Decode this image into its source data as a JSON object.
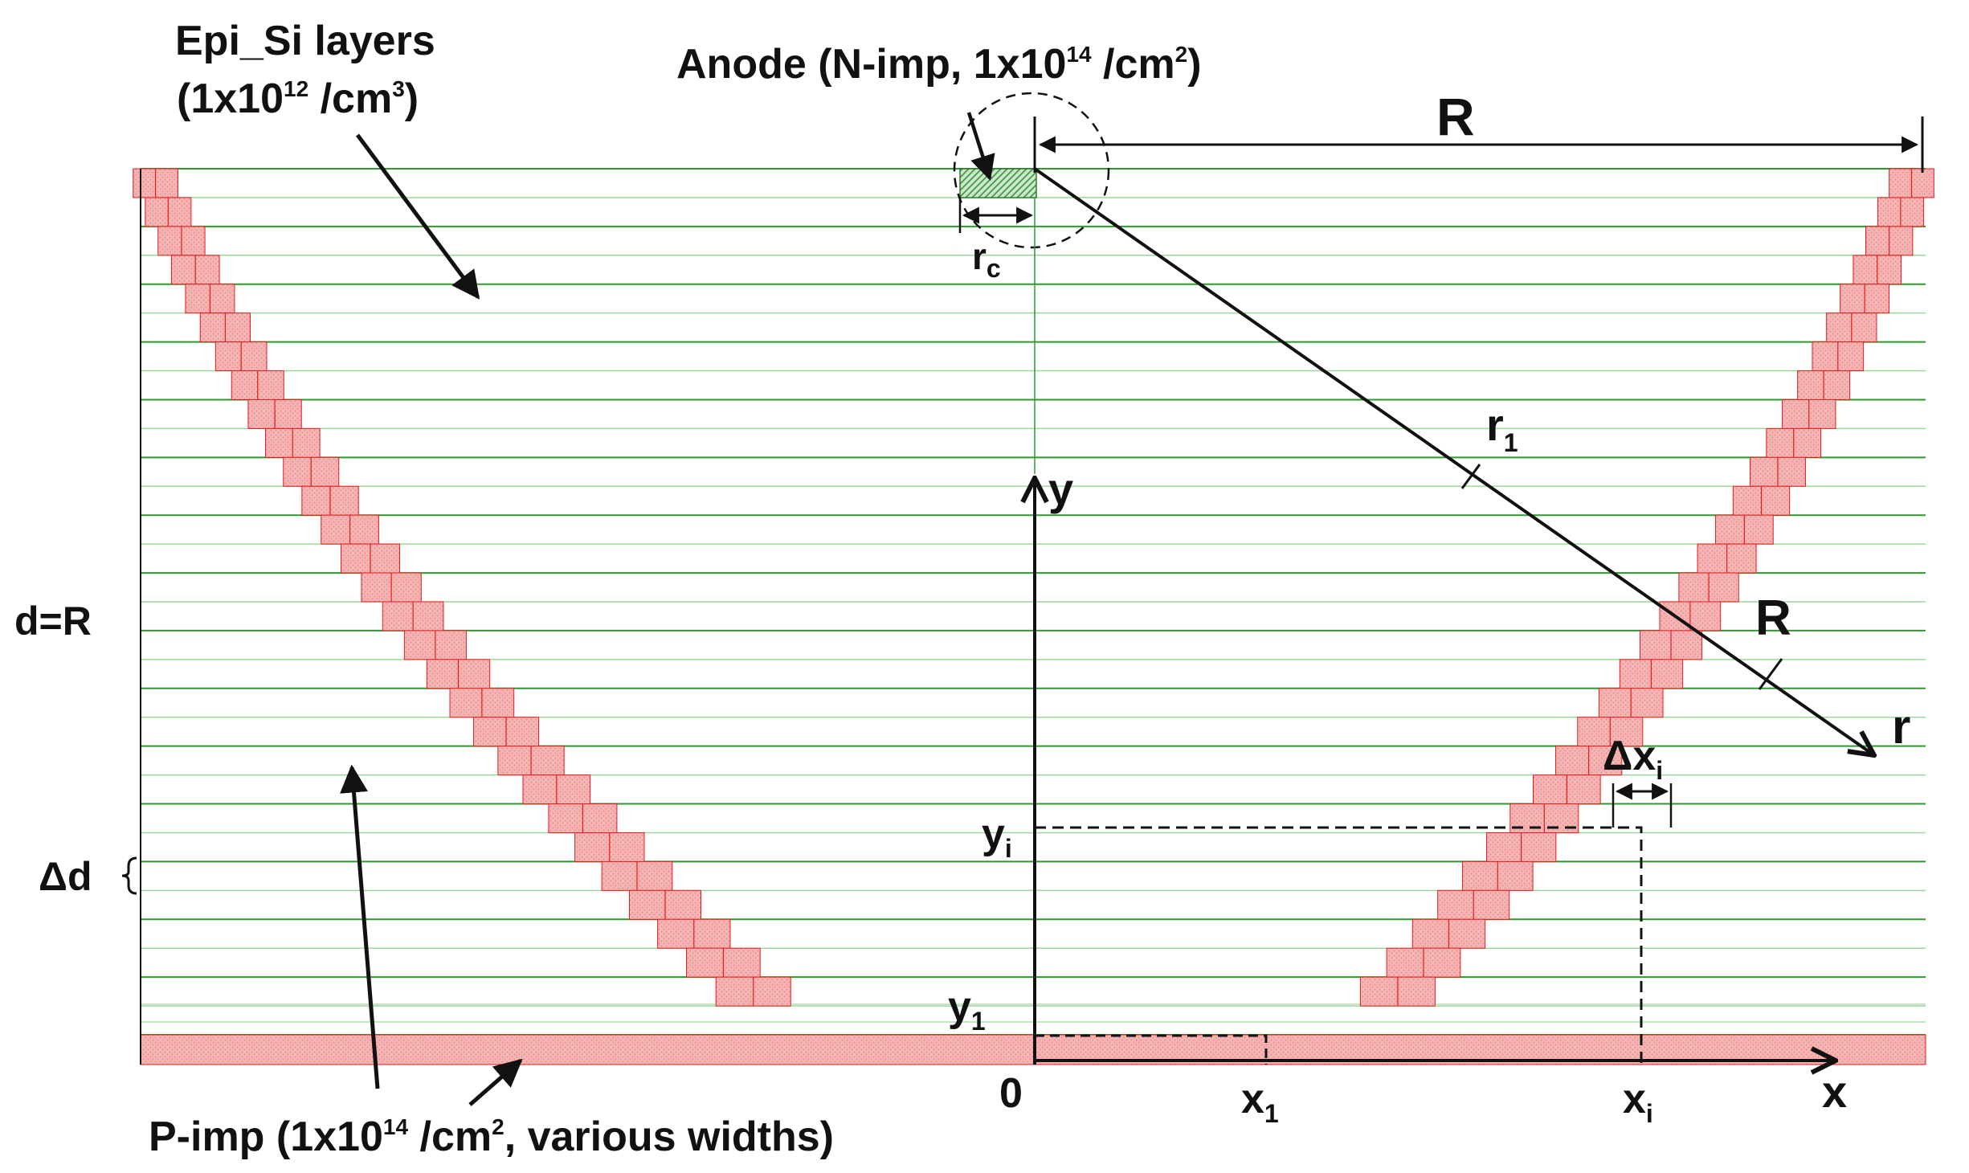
{
  "colors": {
    "layer_line": "#2e9a2e",
    "layer_line_light": "#9ed79e",
    "p_imp_fill": "#f5b5b5",
    "p_imp_dots": "#e88b8b",
    "p_imp_edge": "#e41c1c",
    "anode_fill": "#5aa85a",
    "axis": "#111111"
  },
  "labels": {
    "epi_line1": "Epi_Si layers",
    "epi_line2_a": "(1x10",
    "epi_line2_sup": "12",
    "epi_line2_b": " /cm",
    "epi_line2_sup2": "3",
    "epi_line2_c": ")",
    "anode_a": "Anode (N-imp, 1x10",
    "anode_sup": "14",
    "anode_b": " /cm",
    "anode_sup2": "2",
    "anode_c": ")",
    "R_top": "R",
    "rc_main": "r",
    "rc_sub": "c",
    "r1_main": "r",
    "r1_sub": "1",
    "R_arc": "R",
    "r_end": "r",
    "y_axis": "y",
    "x_axis": "x",
    "d_eq_R": "d=R",
    "delta_d": "Δd",
    "delta_xi_main": "Δx",
    "delta_xi_sub": "i",
    "yi_main": "y",
    "yi_sub": "i",
    "y1_main": "y",
    "y1_sub": "1",
    "origin": "0",
    "x1_main": "x",
    "x1_sub": "1",
    "xi_main": "x",
    "xi_sub": "i",
    "pimp_a": "P-imp (1x10",
    "pimp_sup": "14",
    "pimp_b": " /cm",
    "pimp_sup2": "2",
    "pimp_c": ", various widths)"
  }
}
